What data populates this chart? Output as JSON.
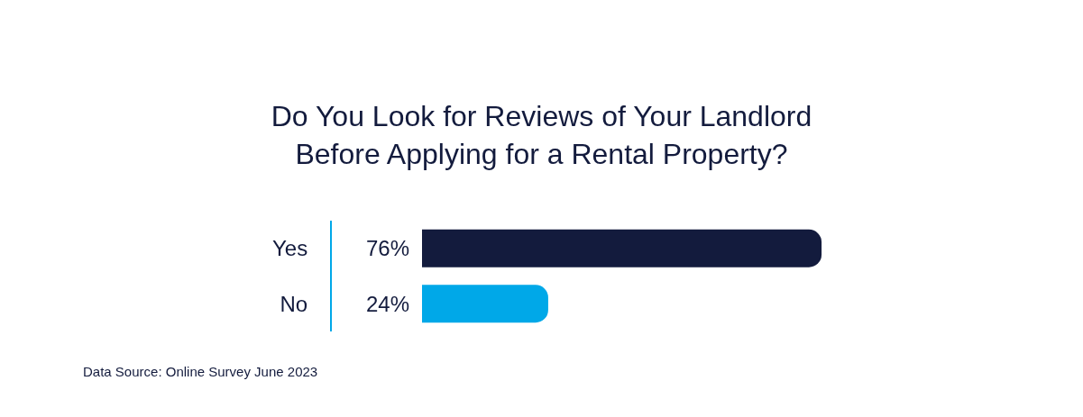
{
  "chart_data": {
    "type": "bar",
    "orientation": "horizontal",
    "title": "Do You Look for Reviews of Your Landlord\nBefore Applying for a Rental Property?",
    "categories": [
      "Yes",
      "No"
    ],
    "values": [
      76,
      24
    ],
    "colors": [
      "#131b3d",
      "#00a8e8"
    ],
    "value_labels": [
      "76%",
      "24%"
    ],
    "annotations": [
      "Data Source: Online Survey June 2023"
    ],
    "legend": false
  }
}
